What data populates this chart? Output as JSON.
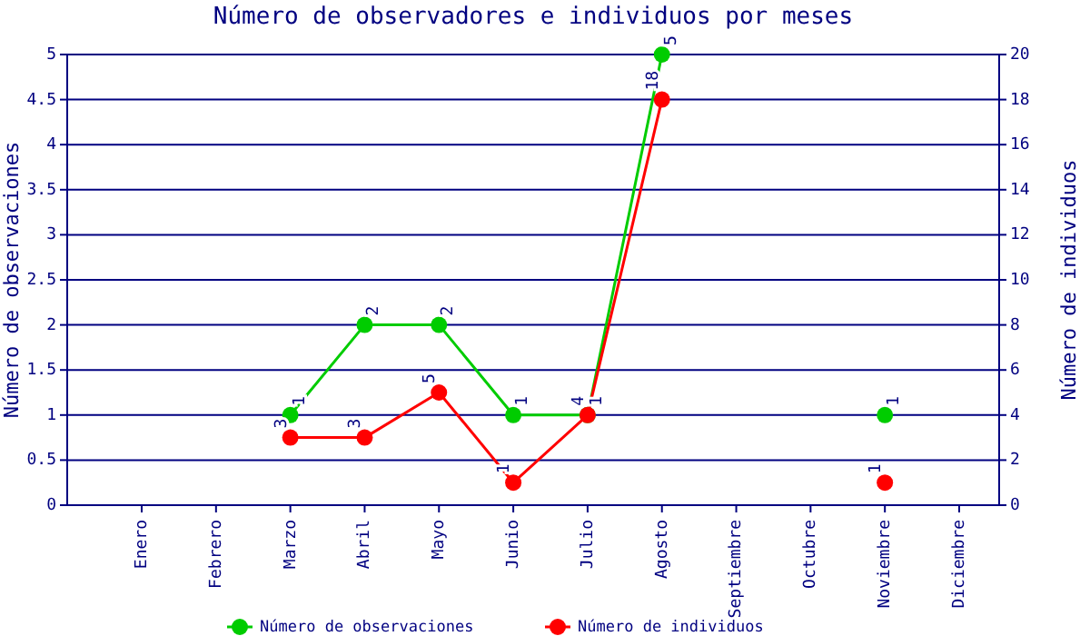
{
  "chart_data": {
    "type": "line",
    "title": "Número de observadores e individuos por meses",
    "ylabel": "Número de observaciones",
    "y2label": "Número de individuos",
    "categories": [
      "Enero",
      "Febrero",
      "Marzo",
      "Abril",
      "Mayo",
      "Junio",
      "Julio",
      "Agosto",
      "Septiembre",
      "Octubre",
      "Noviembre",
      "Diciembre"
    ],
    "series": [
      {
        "name": "Número de observaciones",
        "color": "#00cc00",
        "values": [
          null,
          null,
          1,
          2,
          2,
          1,
          1,
          5,
          null,
          null,
          1,
          null
        ]
      },
      {
        "name": "Número de individuos",
        "color": "#ff0000",
        "axis": "y2",
        "values": [
          null,
          null,
          3,
          3,
          5,
          1,
          4,
          18,
          null,
          null,
          1,
          null
        ]
      }
    ],
    "ylim": [
      0,
      5
    ],
    "yticks": [
      0,
      0.5,
      1,
      1.5,
      2,
      2.5,
      3,
      3.5,
      4,
      4.5,
      5
    ],
    "y2lim": [
      0,
      20
    ],
    "y2ticks": [
      0,
      2,
      4,
      6,
      8,
      10,
      12,
      14,
      16,
      18,
      20
    ],
    "grid": "y",
    "legend": "bottom",
    "marker": "circle",
    "line_style": "solid",
    "data_labels": true
  }
}
